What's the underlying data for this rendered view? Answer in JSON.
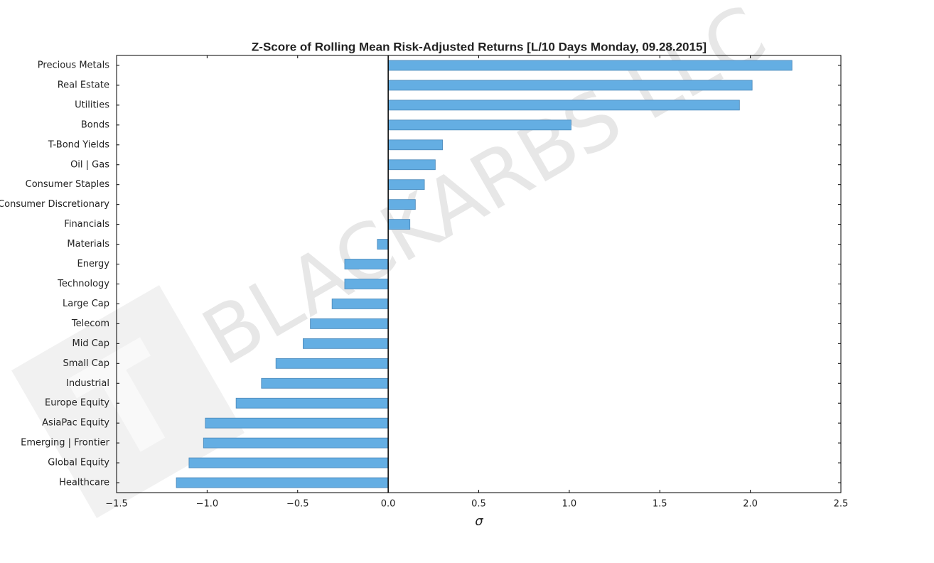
{
  "chart_data": {
    "type": "barh",
    "title": "Z-Score of Rolling Mean Risk-Adjusted Returns [L/10 Days Monday, 09.28.2015]",
    "xlabel": "σ",
    "watermark": "BLACKARBS LLC",
    "categories": [
      "Precious Metals",
      "Real Estate",
      "Utilities",
      "Bonds",
      "T-Bond Yields",
      "Oil | Gas",
      "Consumer Staples",
      "Consumer Discretionary",
      "Financials",
      "Materials",
      "Energy",
      "Technology",
      "Large Cap",
      "Telecom",
      "Mid Cap",
      "Small Cap",
      "Industrial",
      "Europe Equity",
      "AsiaPac Equity",
      "Emerging | Frontier",
      "Global Equity",
      "Healthcare"
    ],
    "values": [
      2.23,
      2.01,
      1.94,
      1.01,
      0.3,
      0.26,
      0.2,
      0.15,
      0.12,
      -0.06,
      -0.24,
      -0.24,
      -0.31,
      -0.43,
      -0.47,
      -0.62,
      -0.7,
      -0.84,
      -1.01,
      -1.02,
      -1.1,
      -1.17
    ],
    "color": "#64aee3",
    "edgecolor": "#4a87b8",
    "xlim": [
      -1.5,
      2.5
    ],
    "xticks": [
      {
        "value": -1.5,
        "label": "−1.5"
      },
      {
        "value": -1,
        "label": "−1.0"
      },
      {
        "value": -0.5,
        "label": "−0.5"
      },
      {
        "value": 0,
        "label": "0.0"
      },
      0.5,
      {
        "value": 1,
        "label": "1.0"
      },
      1.5,
      {
        "value": 2,
        "label": "2.0"
      },
      2.5
    ]
  }
}
